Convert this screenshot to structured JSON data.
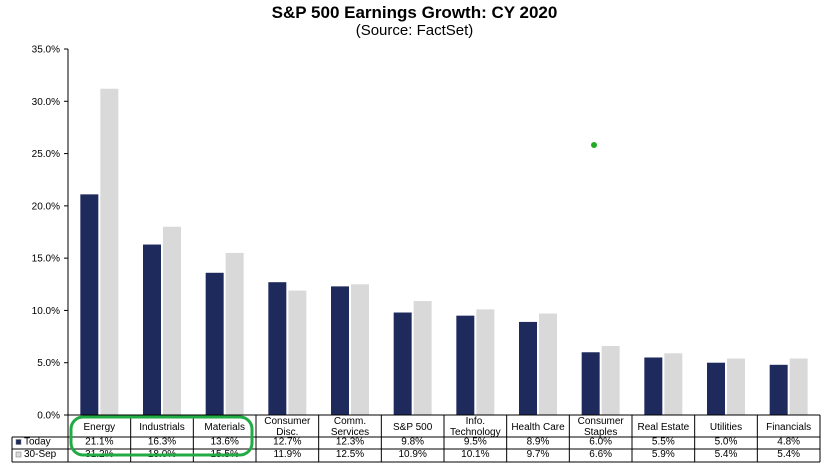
{
  "chart_data": {
    "type": "bar",
    "title": "S&P 500 Earnings Growth: CY 2020",
    "subtitle": "(Source: FactSet)",
    "categories": [
      [
        "Energy"
      ],
      [
        "Industrials"
      ],
      [
        "Materials"
      ],
      [
        "Consumer",
        "Disc."
      ],
      [
        "Comm.",
        "Services"
      ],
      [
        "S&P 500"
      ],
      [
        "Info.",
        "Technology"
      ],
      [
        "Health Care"
      ],
      [
        "Consumer",
        "Staples"
      ],
      [
        "Real Estate"
      ],
      [
        "Utilities"
      ],
      [
        "Financials"
      ]
    ],
    "series": [
      {
        "name": "Today",
        "color": "#1f2a5c",
        "values": [
          21.1,
          16.3,
          13.6,
          12.7,
          12.3,
          9.8,
          9.5,
          8.9,
          6.0,
          5.5,
          5.0,
          4.8
        ],
        "labels": [
          "21.1%",
          "16.3%",
          "13.6%",
          "12.7%",
          "12.3%",
          "9.8%",
          "9.5%",
          "8.9%",
          "6.0%",
          "5.5%",
          "5.0%",
          "4.8%"
        ]
      },
      {
        "name": "30-Sep",
        "color": "#d9d9d9",
        "values": [
          31.2,
          18.0,
          15.5,
          11.9,
          12.5,
          10.9,
          10.1,
          9.7,
          6.6,
          5.9,
          5.4,
          5.4
        ],
        "labels": [
          "31.2%",
          "18.0%",
          "15.5%",
          "11.9%",
          "12.5%",
          "10.9%",
          "10.1%",
          "9.7%",
          "6.6%",
          "5.9%",
          "5.4%",
          "5.4%"
        ]
      }
    ],
    "yticks": [
      "0.0%",
      "5.0%",
      "10.0%",
      "15.0%",
      "20.0%",
      "25.0%",
      "30.0%",
      "35.0%"
    ],
    "ylim": [
      0,
      35
    ],
    "grid": false,
    "legend": "data-table",
    "highlight_color": "#22aa44",
    "dot_color": "#22aa22"
  }
}
